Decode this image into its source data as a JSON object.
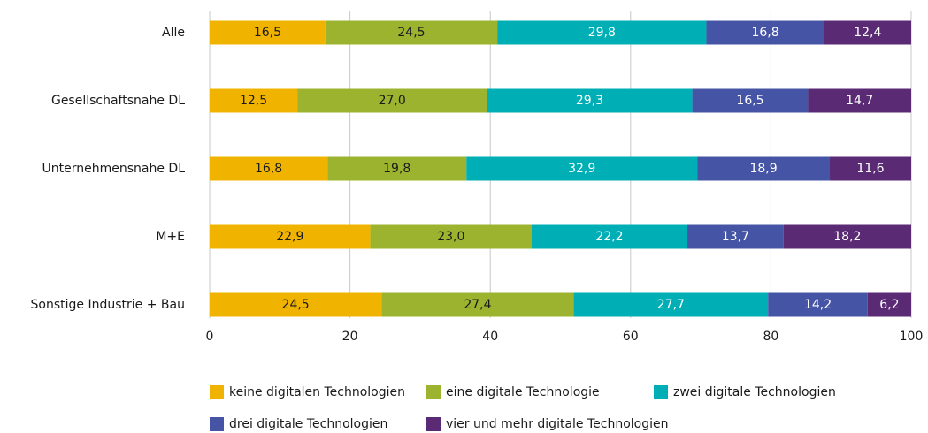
{
  "chart_data": {
    "type": "stacked_barh",
    "categories": [
      "Alle",
      "Gesellschaftsnahe DL",
      "Unternehmensnahe DL",
      "M+E",
      "Sonstige Industrie + Bau"
    ],
    "series": [
      {
        "name": "keine digitalen Technologien",
        "color": "#f0b400",
        "label_color": "#1a1a1a",
        "values": [
          16.5,
          12.5,
          16.8,
          22.9,
          24.5
        ],
        "value_labels": [
          "16,5",
          "12,5",
          "16,8",
          "22,9",
          "24,5"
        ]
      },
      {
        "name": "eine digitale Technologie",
        "color": "#9bb32e",
        "label_color": "#1a1a1a",
        "values": [
          24.5,
          27.0,
          19.8,
          23.0,
          27.4
        ],
        "value_labels": [
          "24,5",
          "27,0",
          "19,8",
          "23,0",
          "27,4"
        ]
      },
      {
        "name": "zwei digitale Technologien",
        "color": "#00afb5",
        "label_color": "#ffffff",
        "values": [
          29.8,
          29.3,
          32.9,
          22.2,
          27.7
        ],
        "value_labels": [
          "29,8",
          "29,3",
          "32,9",
          "22,2",
          "27,7"
        ]
      },
      {
        "name": "drei digitale Technologien",
        "color": "#4654a5",
        "label_color": "#ffffff",
        "values": [
          16.8,
          16.5,
          18.9,
          13.7,
          14.2
        ],
        "value_labels": [
          "16,8",
          "16,5",
          "18,9",
          "13,7",
          "14,2"
        ]
      },
      {
        "name": "vier und mehr digitale Technologien",
        "color": "#5a2a74",
        "label_color": "#ffffff",
        "values": [
          12.4,
          14.7,
          11.6,
          18.2,
          6.2
        ],
        "value_labels": [
          "12,4",
          "14,7",
          "11,6",
          "18,2",
          "6,2"
        ]
      }
    ],
    "xlim": [
      0,
      100
    ],
    "xticks": [
      0,
      20,
      40,
      60,
      80,
      100
    ],
    "grid": true
  }
}
